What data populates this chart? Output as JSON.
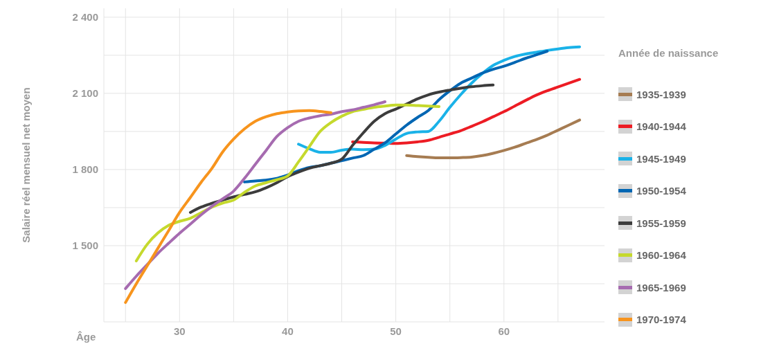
{
  "chart_data": {
    "type": "line",
    "xlabel": "Âge",
    "ylabel": "Salaire réel mensuel net moyen",
    "legend_title": "Année de naissance",
    "legend": "right",
    "grid": true,
    "xlim": [
      23,
      69.3
    ],
    "xticks": [
      {
        "value": 25,
        "label": null
      },
      30,
      {
        "value": 35,
        "label": null
      },
      40,
      {
        "value": 45,
        "label": null
      },
      50,
      {
        "value": 55,
        "label": null
      },
      60,
      {
        "value": 65,
        "label": null
      }
    ],
    "ylim": [
      1200,
      2435
    ],
    "yticks": [
      {
        "value": 1350,
        "label": null
      },
      {
        "value": 1500,
        "label": "1 500"
      },
      {
        "value": 1650,
        "label": null
      },
      {
        "value": 1800,
        "label": "1 800"
      },
      {
        "value": 1950,
        "label": null
      },
      {
        "value": 2100,
        "label": "2 100"
      },
      {
        "value": 2250,
        "label": null
      },
      {
        "value": 2400,
        "label": "2 400"
      }
    ],
    "series": [
      {
        "name": "1935-1939",
        "color": "#a67c52",
        "x": [
          51,
          52,
          53,
          54,
          55,
          56,
          57,
          58,
          59,
          60,
          61,
          62,
          63,
          64,
          65,
          66,
          67
        ],
        "values": [
          1855,
          1851,
          1848,
          1846,
          1846,
          1847,
          1849,
          1855,
          1864,
          1875,
          1888,
          1903,
          1918,
          1935,
          1955,
          1975,
          1995
        ]
      },
      {
        "name": "1940-1944",
        "color": "#ed1c24",
        "x": [
          46,
          47,
          48,
          49,
          50,
          51,
          52,
          53,
          54,
          55,
          56,
          57,
          58,
          59,
          60,
          61,
          62,
          63,
          64,
          65,
          66,
          67
        ],
        "values": [
          1909,
          1907,
          1905,
          1904,
          1903,
          1905,
          1909,
          1915,
          1927,
          1940,
          1953,
          1970,
          1988,
          2008,
          2028,
          2050,
          2072,
          2093,
          2110,
          2125,
          2140,
          2155
        ]
      },
      {
        "name": "1945-1949",
        "color": "#1ab2e8",
        "x": [
          41,
          42,
          43,
          44,
          45,
          46,
          47,
          48,
          49,
          50,
          51,
          52,
          53,
          54,
          55,
          56,
          57,
          58,
          59,
          60,
          61,
          62,
          63,
          64,
          65,
          66,
          67
        ],
        "values": [
          1900,
          1882,
          1868,
          1868,
          1876,
          1880,
          1878,
          1880,
          1895,
          1920,
          1942,
          1948,
          1950,
          1990,
          2045,
          2095,
          2140,
          2178,
          2210,
          2230,
          2245,
          2255,
          2262,
          2269,
          2275,
          2280,
          2283
        ]
      },
      {
        "name": "1950-1954",
        "color": "#0066b3",
        "x": [
          36,
          37,
          38,
          39,
          40,
          41,
          42,
          43,
          44,
          45,
          46,
          47,
          48,
          49,
          50,
          51,
          52,
          53,
          54,
          55,
          56,
          57,
          58,
          59,
          60,
          61,
          62,
          63,
          64
        ],
        "values": [
          1751,
          1755,
          1758,
          1765,
          1778,
          1795,
          1808,
          1815,
          1825,
          1835,
          1845,
          1855,
          1880,
          1905,
          1940,
          1975,
          2005,
          2032,
          2075,
          2110,
          2140,
          2160,
          2180,
          2195,
          2207,
          2222,
          2238,
          2252,
          2266
        ]
      },
      {
        "name": "1955-1959",
        "color": "#3c3c3c",
        "x": [
          31,
          32,
          33,
          34,
          35,
          36,
          37,
          38,
          39,
          40,
          41,
          42,
          43,
          44,
          45,
          46,
          47,
          48,
          49,
          50,
          51,
          52,
          53,
          54,
          55,
          56,
          57,
          58,
          59
        ],
        "values": [
          1631,
          1652,
          1667,
          1680,
          1692,
          1702,
          1712,
          1728,
          1748,
          1772,
          1790,
          1805,
          1815,
          1825,
          1841,
          1895,
          1945,
          1990,
          2020,
          2038,
          2058,
          2078,
          2094,
          2105,
          2113,
          2120,
          2126,
          2130,
          2133
        ]
      },
      {
        "name": "1960-1964",
        "color": "#c5d92d",
        "x": [
          26,
          27,
          28,
          29,
          30,
          31,
          32,
          33,
          34,
          35,
          36,
          37,
          38,
          39,
          40,
          41,
          42,
          43,
          44,
          45,
          46,
          47,
          48,
          49,
          50,
          51,
          52,
          53,
          54
        ],
        "values": [
          1440,
          1505,
          1550,
          1580,
          1596,
          1608,
          1630,
          1652,
          1668,
          1680,
          1710,
          1735,
          1748,
          1760,
          1775,
          1830,
          1890,
          1950,
          1985,
          2010,
          2028,
          2037,
          2045,
          2050,
          2054,
          2054,
          2052,
          2050,
          2048
        ]
      },
      {
        "name": "1965-1969",
        "color": "#a66bb0",
        "x": [
          25,
          26,
          27,
          28,
          29,
          30,
          31,
          32,
          33,
          34,
          35,
          36,
          37,
          38,
          39,
          40,
          41,
          42,
          43,
          44,
          45,
          46,
          47,
          48,
          49
        ],
        "values": [
          1331,
          1380,
          1425,
          1470,
          1510,
          1549,
          1585,
          1622,
          1655,
          1685,
          1715,
          1765,
          1820,
          1875,
          1930,
          1965,
          1990,
          2003,
          2012,
          2018,
          2028,
          2035,
          2045,
          2055,
          2067
        ]
      },
      {
        "name": "1970-1974",
        "color": "#f7941d",
        "x": [
          25,
          26,
          27,
          28,
          29,
          30,
          31,
          32,
          33,
          34,
          35,
          36,
          37,
          38,
          39,
          40,
          41,
          42,
          43,
          44
        ],
        "values": [
          1276,
          1350,
          1420,
          1490,
          1560,
          1631,
          1690,
          1750,
          1805,
          1870,
          1920,
          1960,
          1990,
          2008,
          2020,
          2027,
          2031,
          2032,
          2029,
          2024
        ]
      }
    ]
  }
}
